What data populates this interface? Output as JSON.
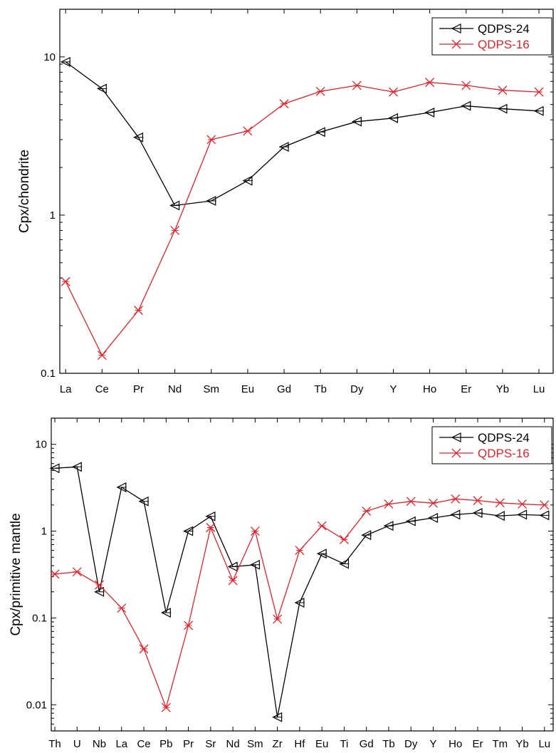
{
  "chart_data": [
    {
      "type": "line",
      "yscale": "log",
      "ylabel": "Cpx/chondrite",
      "ylim": [
        0.1,
        20
      ],
      "yticks": [
        0.1,
        1,
        10
      ],
      "yticklabels": [
        "0.1",
        "1",
        "10"
      ],
      "categories": [
        "La",
        "Ce",
        "Pr",
        "Nd",
        "Sm",
        "Eu",
        "Gd",
        "Tb",
        "Dy",
        "Y",
        "Ho",
        "Er",
        "Yb",
        "Lu"
      ],
      "legend_position": "top-right",
      "grid": false,
      "series": [
        {
          "name": "QDPS-24",
          "color": "#000000",
          "marker": "left-triangle",
          "values": [
            9.3,
            6.3,
            3.1,
            1.15,
            1.23,
            1.65,
            2.7,
            3.35,
            3.9,
            4.1,
            4.45,
            4.9,
            4.7,
            4.55
          ]
        },
        {
          "name": "QDPS-16",
          "color": "#e8202a",
          "marker": "cross-x",
          "values": [
            0.38,
            0.13,
            0.25,
            0.8,
            3.0,
            3.4,
            5.05,
            6.05,
            6.6,
            6.0,
            6.9,
            6.6,
            6.15,
            6.0
          ]
        }
      ]
    },
    {
      "type": "line",
      "yscale": "log",
      "ylabel": "Cpx/primitive mantle",
      "ylim": [
        0.005,
        20
      ],
      "yticks": [
        0.01,
        0.1,
        1,
        10
      ],
      "yticklabels": [
        "0.01",
        "0.1",
        "1",
        "10"
      ],
      "categories": [
        "Th",
        "U",
        "Nb",
        "La",
        "Ce",
        "Pb",
        "Pr",
        "Sr",
        "Nd",
        "Sm",
        "Zr",
        "Hf",
        "Eu",
        "Ti",
        "Gd",
        "Tb",
        "Dy",
        "Y",
        "Ho",
        "Er",
        "Tm",
        "Yb",
        "Lu"
      ],
      "legend_position": "top-right",
      "grid": false,
      "series": [
        {
          "name": "QDPS-24",
          "color": "#000000",
          "marker": "left-triangle",
          "values": [
            5.3,
            5.5,
            0.2,
            3.2,
            2.2,
            0.115,
            1.0,
            1.48,
            0.39,
            0.41,
            0.0072,
            0.15,
            0.55,
            0.42,
            0.9,
            1.15,
            1.3,
            1.42,
            1.55,
            1.62,
            1.5,
            1.55,
            1.52
          ]
        },
        {
          "name": "QDPS-16",
          "color": "#e8202a",
          "marker": "cross-x",
          "values": [
            0.32,
            0.34,
            0.24,
            0.13,
            0.044,
            0.0093,
            0.082,
            1.1,
            0.27,
            1.0,
            0.097,
            0.6,
            1.15,
            0.8,
            1.7,
            2.05,
            2.2,
            2.1,
            2.35,
            2.25,
            2.12,
            2.05,
            2.0
          ]
        }
      ]
    }
  ]
}
